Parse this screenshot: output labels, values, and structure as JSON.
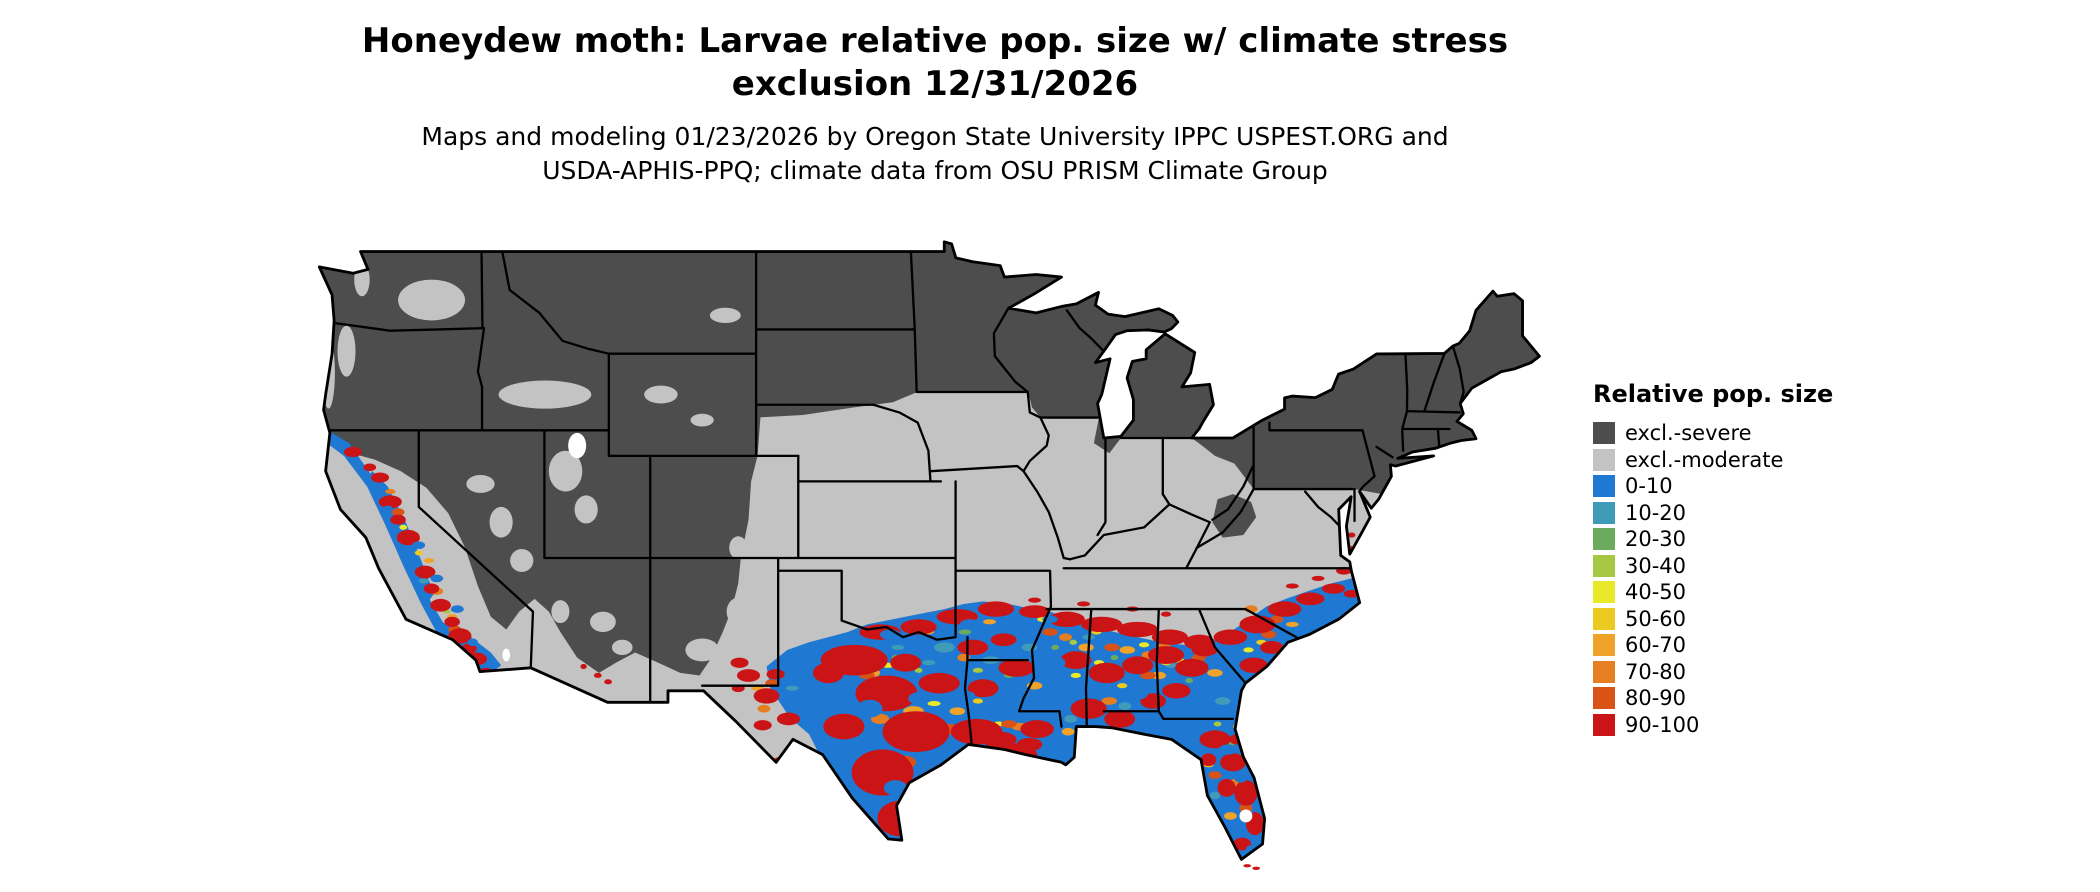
{
  "title": {
    "line1": "Honeydew moth: Larvae relative pop. size w/ climate stress",
    "line2": "exclusion 12/31/2026"
  },
  "subtitle": {
    "line1": "Maps and modeling 01/23/2026 by Oregon State University IPPC USPEST.ORG and",
    "line2": "USDA-APHIS-PPQ; climate data from OSU PRISM Climate Group"
  },
  "legend": {
    "title": "Relative pop. size",
    "items": [
      {
        "label": "excl.-severe",
        "color": "#4d4d4d"
      },
      {
        "label": "excl.-moderate",
        "color": "#c3c3c3"
      },
      {
        "label": "0-10",
        "color": "#1f78d1"
      },
      {
        "label": "10-20",
        "color": "#3f9bb8"
      },
      {
        "label": "20-30",
        "color": "#6aab5d"
      },
      {
        "label": "30-40",
        "color": "#a6c843"
      },
      {
        "label": "40-50",
        "color": "#e9e929"
      },
      {
        "label": "50-60",
        "color": "#edca20"
      },
      {
        "label": "60-70",
        "color": "#f0a32a"
      },
      {
        "label": "70-80",
        "color": "#e67e22"
      },
      {
        "label": "80-90",
        "color": "#d95317"
      },
      {
        "label": "90-100",
        "color": "#cb1416"
      }
    ]
  },
  "map": {
    "region": "Continental United States",
    "border_color": "#000000",
    "water_color": "#ffffff"
  }
}
